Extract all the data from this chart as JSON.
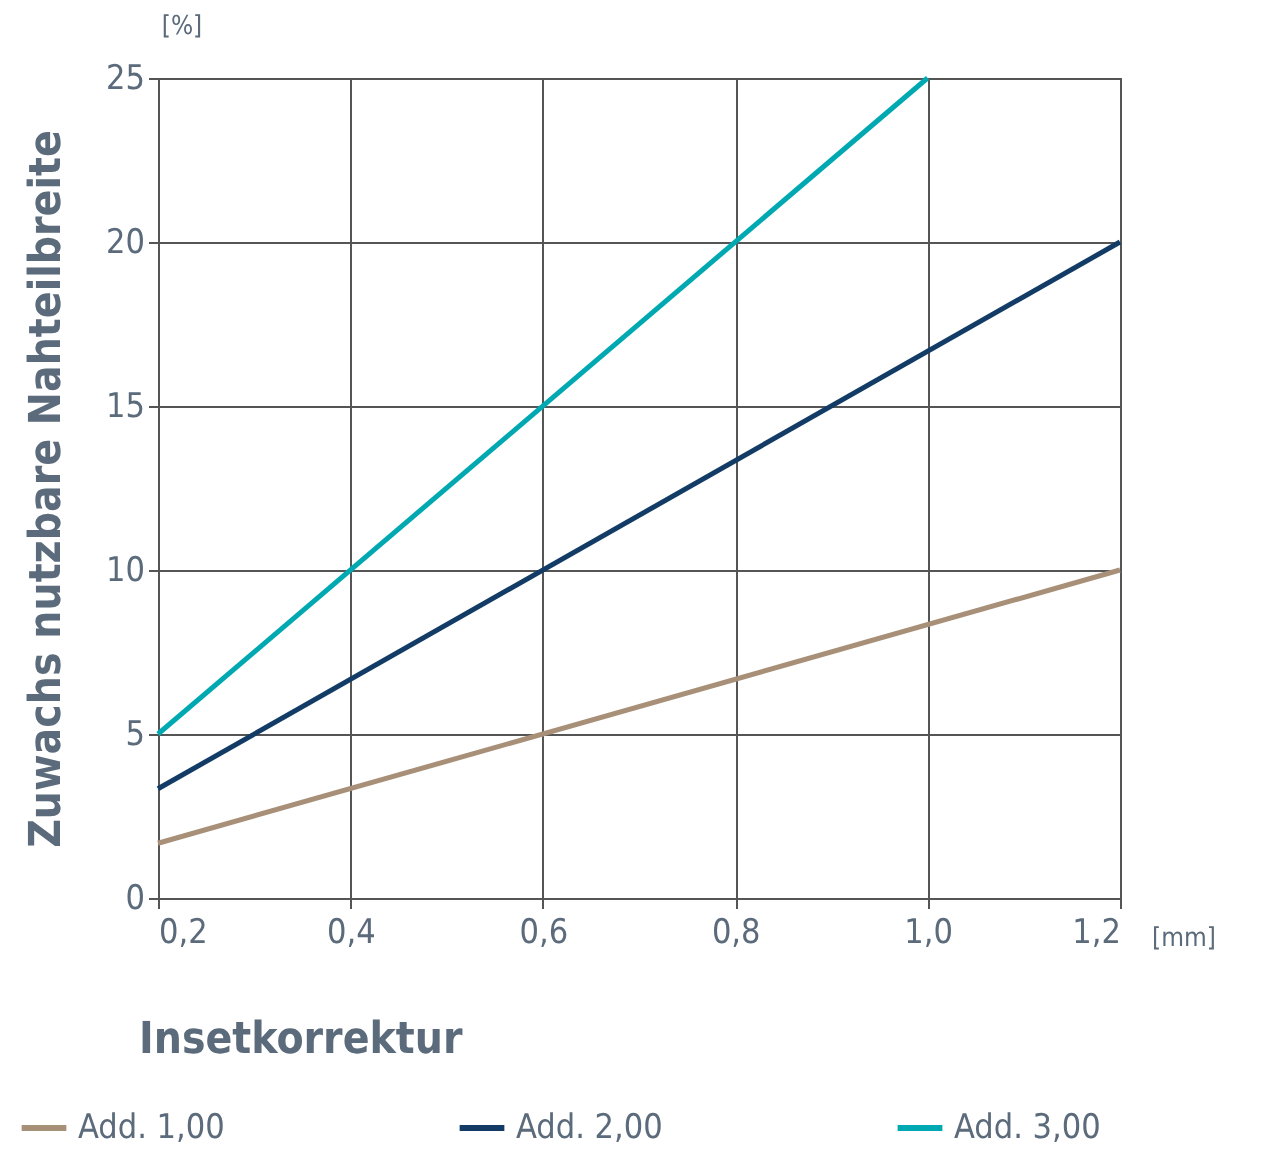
{
  "chart_data": {
    "type": "line",
    "xlabel": "Insetkorrektur",
    "ylabel": "Zuwachs nutzbare Nahteilbreite",
    "annotations": [
      "[%]",
      "[mm]"
    ],
    "series": [
      {
        "name": "Add. 1,00",
        "color": "#a89078",
        "x": [
          0.2,
          1.2
        ],
        "values": [
          1.67,
          10
        ]
      },
      {
        "name": "Add. 2,00",
        "color": "#123c66",
        "x": [
          0.2,
          1.2
        ],
        "values": [
          3.33,
          20
        ]
      },
      {
        "name": "Add. 3,00",
        "color": "#00a9b1",
        "x": [
          0.2,
          1.0
        ],
        "values": [
          5,
          25
        ]
      }
    ],
    "xlim": [
      0.2,
      1.2
    ],
    "xticks": [
      {
        "value": 0.2,
        "label": "0,2"
      },
      {
        "value": 0.4,
        "label": "0,4"
      },
      {
        "value": 0.6,
        "label": "0,6"
      },
      {
        "value": 0.8,
        "label": "0,8"
      },
      {
        "value": 1.0,
        "label": "1,0"
      },
      {
        "value": 1.2,
        "label": "1,2"
      }
    ],
    "ylim": [
      0,
      25
    ],
    "yticks": [
      0,
      5,
      10,
      15,
      20,
      25
    ],
    "grid": true,
    "legend": "bottom",
    "marker": "none",
    "line_style": "solid"
  }
}
